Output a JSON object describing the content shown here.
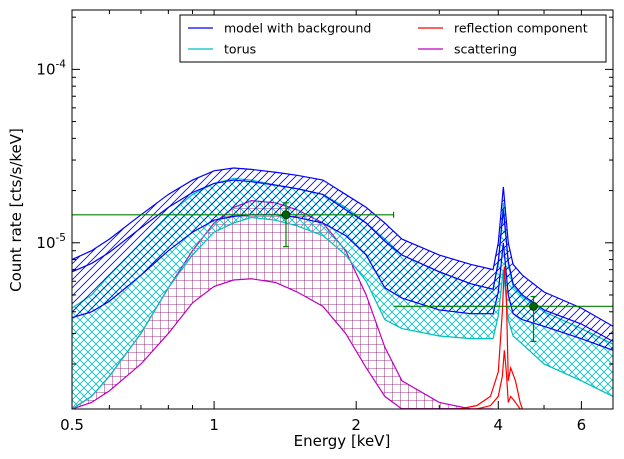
{
  "chart_data": {
    "type": "line",
    "xlabel": "Energy [keV]",
    "ylabel": "Count rate [cts/s/keV]",
    "x_scale": "log",
    "y_scale": "log",
    "xlim": [
      0.5,
      7.0
    ],
    "ylim": [
      1.1e-06,
      0.00022
    ],
    "x_ticks": [
      {
        "value": 0.5,
        "label": "0.5"
      },
      {
        "value": 1,
        "label": "1"
      },
      {
        "value": 2,
        "label": "2"
      },
      {
        "value": 4,
        "label": "4"
      },
      {
        "value": 6,
        "label": "6"
      }
    ],
    "y_ticks": [
      {
        "value": 1e-05,
        "base": "10",
        "exp": "-5"
      },
      {
        "value": 0.0001,
        "base": "10",
        "exp": "-4"
      }
    ],
    "legend": {
      "placement": "top-right",
      "columns": 2,
      "entries": [
        {
          "label": "model with background",
          "color": "#0000ff"
        },
        {
          "label": "reflection component",
          "color": "#ff0000"
        },
        {
          "label": "torus",
          "color": "#00bfbf"
        },
        {
          "label": "scattering",
          "color": "#bf00bf"
        }
      ]
    },
    "series": [
      {
        "name": "model with background",
        "color": "#0000ff",
        "hatch": "diagonal",
        "x": [
          0.5,
          0.55,
          0.6,
          0.7,
          0.8,
          0.9,
          1.0,
          1.1,
          1.2,
          1.35,
          1.5,
          1.7,
          1.9,
          2.1,
          2.3,
          2.5,
          3.0,
          3.5,
          3.9,
          4.0,
          4.1,
          4.2,
          4.3,
          4.5,
          5.0,
          6.0,
          7.0
        ],
        "upper": [
          8e-06,
          9e-06,
          1.05e-05,
          1.45e-05,
          1.9e-05,
          2.3e-05,
          2.6e-05,
          2.7e-05,
          2.65e-05,
          2.55e-05,
          2.45e-05,
          2.3e-05,
          1.9e-05,
          1.6e-05,
          1.3e-05,
          1.05e-05,
          8.5e-06,
          7.5e-06,
          7e-06,
          1e-05,
          2.1e-05,
          1e-05,
          7.5e-06,
          6.5e-06,
          5.2e-06,
          4.2e-06,
          3.3e-06
        ],
        "median": [
          6.8e-06,
          7.6e-06,
          8.8e-06,
          1.22e-05,
          1.6e-05,
          1.95e-05,
          2.2e-05,
          2.3e-05,
          2.25e-05,
          2.15e-05,
          2.05e-05,
          1.9e-05,
          1.55e-05,
          1.3e-05,
          1.02e-05,
          8.5e-06,
          6.8e-06,
          5.8e-06,
          5.4e-06,
          7.8e-06,
          1.55e-05,
          7.8e-06,
          5.8e-06,
          5e-06,
          4.1e-06,
          3.4e-06,
          2.7e-06
        ],
        "lower": [
          3.7e-06,
          4e-06,
          4.6e-06,
          6.5e-06,
          9e-06,
          1.15e-05,
          1.35e-05,
          1.42e-05,
          1.45e-05,
          1.45e-05,
          1.4e-05,
          1.3e-05,
          1.1e-05,
          8.5e-06,
          5.5e-06,
          4.8e-06,
          4.1e-06,
          3.9e-06,
          3.9e-06,
          5.2e-06,
          1e-05,
          5e-06,
          3.9e-06,
          3.6e-06,
          3.3e-06,
          2.8e-06,
          2.4e-06
        ]
      },
      {
        "name": "torus",
        "color": "#00bfbf",
        "hatch": "cross-diagonal",
        "x": [
          0.5,
          0.55,
          0.6,
          0.7,
          0.8,
          0.9,
          1.0,
          1.1,
          1.2,
          1.35,
          1.5,
          1.7,
          1.9,
          2.1,
          2.3,
          2.5,
          3.0,
          3.5,
          3.9,
          4.0,
          4.1,
          4.2,
          4.3,
          4.5,
          5.0,
          6.0,
          7.0
        ],
        "upper": [
          4.2e-06,
          5e-06,
          6.5e-06,
          1e-05,
          1.45e-05,
          1.9e-05,
          2.2e-05,
          2.35e-05,
          2.3e-05,
          2.15e-05,
          2.05e-05,
          1.9e-05,
          1.6e-05,
          1.3e-05,
          1.05e-05,
          8.5e-06,
          6.8e-06,
          5.8e-06,
          5.4e-06,
          7.5e-06,
          1.7e-05,
          7.5e-06,
          5.6e-06,
          4.9e-06,
          4e-06,
          3.2e-06,
          2.6e-06
        ],
        "lower": [
          1.1e-06,
          1.3e-06,
          1.7e-06,
          3e-06,
          5.5e-06,
          8.5e-06,
          1.15e-05,
          1.3e-05,
          1.4e-05,
          1.35e-05,
          1.25e-05,
          1.1e-05,
          8.5e-06,
          6e-06,
          3.6e-06,
          3.2e-06,
          2.9e-06,
          2.8e-06,
          2.8e-06,
          3.8e-06,
          7e-06,
          3.6e-06,
          2.9e-06,
          2.6e-06,
          2e-06,
          1.6e-06,
          1.3e-06
        ]
      },
      {
        "name": "scattering",
        "color": "#bf00bf",
        "hatch": "grid",
        "x": [
          0.5,
          0.55,
          0.6,
          0.7,
          0.8,
          0.9,
          1.0,
          1.1,
          1.2,
          1.35,
          1.5,
          1.7,
          1.9,
          2.1,
          2.3,
          2.5,
          3.0,
          3.5,
          3.9
        ],
        "upper": [
          1.1e-06,
          1.3e-06,
          1.7e-06,
          3e-06,
          5.5e-06,
          9e-06,
          1.3e-05,
          1.6e-05,
          1.75e-05,
          1.7e-05,
          1.55e-05,
          1.3e-05,
          9e-06,
          5e-06,
          2.5e-06,
          1.6e-06,
          1.2e-06,
          1.1e-06,
          1.1e-06
        ],
        "lower": [
          1.1e-06,
          1.2e-06,
          1.4e-06,
          2e-06,
          3e-06,
          4.5e-06,
          5.6e-06,
          6.1e-06,
          6.2e-06,
          5.9e-06,
          5.2e-06,
          4.3e-06,
          3e-06,
          1.9e-06,
          1.3e-06,
          1.1e-06,
          1.1e-06,
          1.1e-06,
          1.1e-06
        ]
      },
      {
        "name": "reflection component",
        "color": "#ff0000",
        "hatch": "none",
        "x": [
          3.3,
          3.6,
          3.85,
          4.0,
          4.08,
          4.12,
          4.16,
          4.2,
          4.25,
          4.35,
          4.45,
          4.5
        ],
        "upper": [
          1.1e-06,
          1.15e-06,
          1.3e-06,
          1.8e-06,
          4e-06,
          7.3e-06,
          5e-06,
          1.6e-06,
          1.9e-06,
          1.6e-06,
          1.2e-06,
          1.1e-06
        ],
        "lower": [
          1.1e-06,
          1.1e-06,
          1.15e-06,
          1.3e-06,
          1.7e-06,
          2.4e-06,
          1.8e-06,
          1.2e-06,
          1.3e-06,
          1.2e-06,
          1.1e-06,
          1.1e-06
        ]
      }
    ],
    "data_points": [
      {
        "x": 1.42,
        "y": 1.45e-05,
        "xerr": [
          0.5,
          2.4
        ],
        "yerr": [
          9.5e-06,
          1.7e-05
        ],
        "color": "#008000"
      },
      {
        "x": 4.75,
        "y": 4.3e-06,
        "xerr": [
          2.4,
          7.0
        ],
        "yerr": [
          2.7e-06,
          4.9e-06
        ],
        "color": "#008000"
      }
    ]
  }
}
